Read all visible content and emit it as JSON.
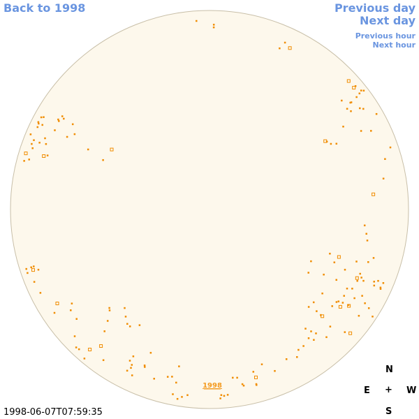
{
  "nav": {
    "back_label": "Back to 1998",
    "prev_day_label": "Previous day",
    "next_day_label": "Next day",
    "prev_hour_label": "Previous hour",
    "next_hour_label": "Next hour"
  },
  "disk": {
    "year_label": "1998",
    "fill_color": "#fdf8ec",
    "rim_color": "#c8bfa8",
    "marker_color": "#f08c00"
  },
  "compass": {
    "n": "N",
    "e": "E",
    "plus": "+",
    "w": "W",
    "s": "S"
  },
  "timestamp": "1998-06-07T07:59:35"
}
